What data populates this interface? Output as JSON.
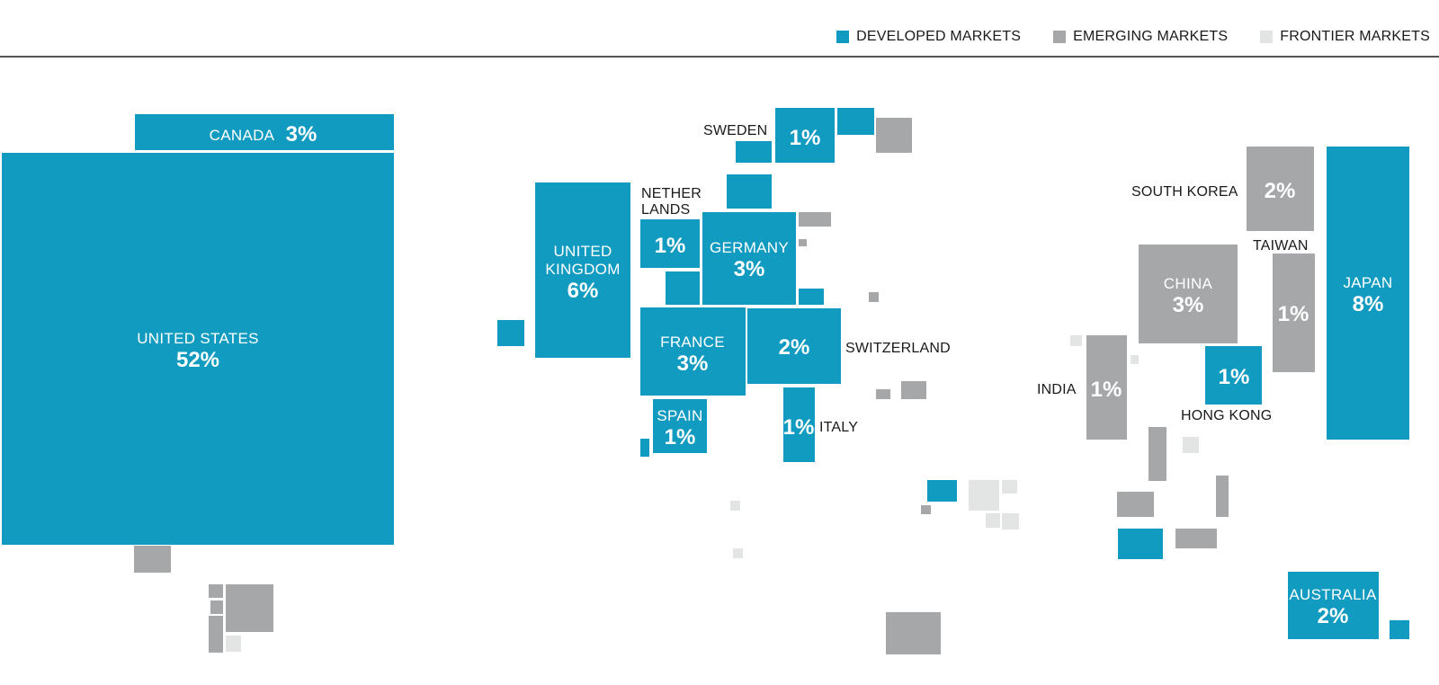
{
  "legend": {
    "developed": "DEVELOPED MARKETS",
    "emerging": "EMERGING MARKETS",
    "frontier": "FRONTIER MARKETS"
  },
  "colors": {
    "developed": "#129bc0",
    "emerging": "#a5a7a9",
    "frontier": "#e3e4e4",
    "rule": "#545454"
  },
  "chart_data": {
    "type": "cartogram",
    "unit": "%",
    "categories": [
      "Developed Markets",
      "Emerging Markets",
      "Frontier Markets"
    ],
    "countries": [
      {
        "name": "UNITED STATES",
        "value": 52,
        "label": "52%",
        "market": "developed"
      },
      {
        "name": "JAPAN",
        "value": 8,
        "label": "8%",
        "market": "developed"
      },
      {
        "name": "UNITED KINGDOM",
        "value": 6,
        "label": "6%",
        "market": "developed"
      },
      {
        "name": "CANADA",
        "value": 3,
        "label": "3%",
        "market": "developed"
      },
      {
        "name": "GERMANY",
        "value": 3,
        "label": "3%",
        "market": "developed"
      },
      {
        "name": "FRANCE",
        "value": 3,
        "label": "3%",
        "market": "developed"
      },
      {
        "name": "CHINA",
        "value": 3,
        "label": "3%",
        "market": "emerging"
      },
      {
        "name": "SWITZERLAND",
        "value": 2,
        "label": "2%",
        "market": "developed"
      },
      {
        "name": "AUSTRALIA",
        "value": 2,
        "label": "2%",
        "market": "developed"
      },
      {
        "name": "SOUTH KOREA",
        "value": 2,
        "label": "2%",
        "market": "emerging"
      },
      {
        "name": "SWEDEN",
        "value": 1,
        "label": "1%",
        "market": "developed"
      },
      {
        "name": "NETHERLANDS",
        "value": 1,
        "label": "1%",
        "market": "developed"
      },
      {
        "name": "SPAIN",
        "value": 1,
        "label": "1%",
        "market": "developed"
      },
      {
        "name": "ITALY",
        "value": 1,
        "label": "1%",
        "market": "developed"
      },
      {
        "name": "HONG KONG",
        "value": 1,
        "label": "1%",
        "market": "developed"
      },
      {
        "name": "TAIWAN",
        "value": 1,
        "label": "1%",
        "market": "emerging"
      },
      {
        "name": "INDIA",
        "value": 1,
        "label": "1%",
        "market": "emerging"
      }
    ]
  }
}
